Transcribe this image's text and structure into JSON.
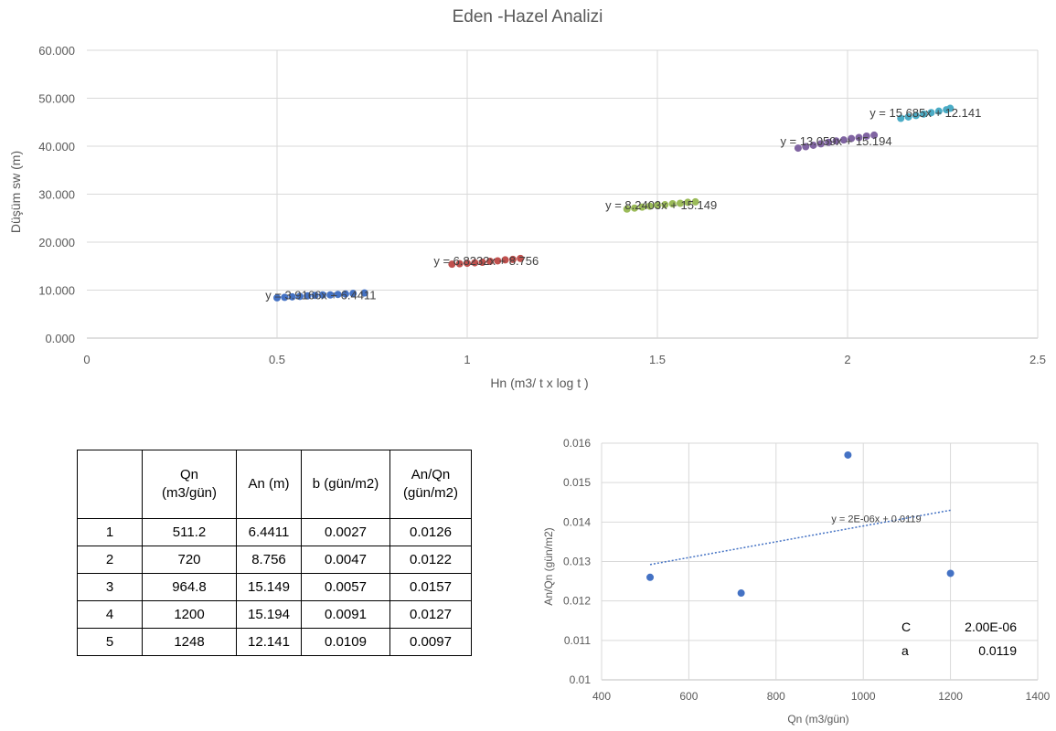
{
  "main_title": "Eden -Hazel Analizi",
  "colors": {
    "s1": "#4472c4",
    "s2": "#c0504d",
    "s3": "#9bbb59",
    "s4": "#8064a2",
    "s5": "#4bacc6",
    "grid": "#d9d9d9",
    "text": "#595959"
  },
  "chart_data": [
    {
      "type": "scatter",
      "title": "Eden -Hazel Analizi",
      "xlabel": "Hn  (m3/ t  x log t )",
      "ylabel": "Düşüm sw (m)",
      "xlim": [
        0,
        2.5
      ],
      "ylim": [
        0,
        60
      ],
      "x_ticks": [
        "0",
        "0.5",
        "1",
        "1.5",
        "2",
        "2.5"
      ],
      "y_ticks": [
        "0.000",
        "10.000",
        "20.000",
        "30.000",
        "40.000",
        "50.000",
        "60.000"
      ],
      "grid": true,
      "series": [
        {
          "color": "#4472c4",
          "trendline": "y = 3.9166x + 6.4411",
          "points": [
            [
              0.5,
              8.4
            ],
            [
              0.52,
              8.5
            ],
            [
              0.54,
              8.6
            ],
            [
              0.56,
              8.7
            ],
            [
              0.58,
              8.8
            ],
            [
              0.6,
              8.9
            ],
            [
              0.62,
              9.0
            ],
            [
              0.64,
              9.0
            ],
            [
              0.66,
              9.1
            ],
            [
              0.68,
              9.2
            ],
            [
              0.7,
              9.3
            ],
            [
              0.73,
              9.4
            ]
          ]
        },
        {
          "color": "#c0504d",
          "trendline": "y = 6.8232x + 8.756",
          "points": [
            [
              0.96,
              15.4
            ],
            [
              0.98,
              15.5
            ],
            [
              1.0,
              15.6
            ],
            [
              1.02,
              15.7
            ],
            [
              1.04,
              15.8
            ],
            [
              1.06,
              16.0
            ],
            [
              1.08,
              16.1
            ],
            [
              1.1,
              16.3
            ],
            [
              1.12,
              16.4
            ],
            [
              1.14,
              16.6
            ]
          ]
        },
        {
          "color": "#9bbb59",
          "trendline": "y = 8.2403x + 15.149",
          "points": [
            [
              1.42,
              26.9
            ],
            [
              1.44,
              27.1
            ],
            [
              1.46,
              27.3
            ],
            [
              1.48,
              27.5
            ],
            [
              1.5,
              27.7
            ],
            [
              1.52,
              27.8
            ],
            [
              1.54,
              28.0
            ],
            [
              1.56,
              28.1
            ],
            [
              1.58,
              28.3
            ],
            [
              1.6,
              28.4
            ]
          ]
        },
        {
          "color": "#8064a2",
          "trendline": "y = 13.059x + 15.194",
          "points": [
            [
              1.87,
              39.6
            ],
            [
              1.89,
              39.9
            ],
            [
              1.91,
              40.2
            ],
            [
              1.93,
              40.5
            ],
            [
              1.95,
              40.8
            ],
            [
              1.97,
              41.1
            ],
            [
              1.99,
              41.3
            ],
            [
              2.01,
              41.6
            ],
            [
              2.03,
              41.8
            ],
            [
              2.05,
              42.1
            ],
            [
              2.07,
              42.3
            ]
          ]
        },
        {
          "color": "#4bacc6",
          "trendline": "y = 15.685x + 12.141",
          "points": [
            [
              2.14,
              45.8
            ],
            [
              2.16,
              46.1
            ],
            [
              2.18,
              46.4
            ],
            [
              2.2,
              46.7
            ],
            [
              2.22,
              47.0
            ],
            [
              2.24,
              47.3
            ],
            [
              2.26,
              47.6
            ],
            [
              2.27,
              47.9
            ]
          ]
        }
      ]
    },
    {
      "type": "scatter",
      "xlabel": "Qn (m3/gün)",
      "ylabel": "An/Qn (gün/m2)",
      "xlim": [
        400,
        1400
      ],
      "ylim": [
        0.01,
        0.016
      ],
      "x_ticks": [
        "400",
        "600",
        "800",
        "1000",
        "1200",
        "1400"
      ],
      "y_ticks": [
        "0.01",
        "0.011",
        "0.012",
        "0.013",
        "0.014",
        "0.015",
        "0.016"
      ],
      "grid": true,
      "points": [
        [
          511.2,
          0.0126
        ],
        [
          720,
          0.0122
        ],
        [
          964.8,
          0.0157
        ],
        [
          1200,
          0.0127
        ]
      ],
      "trendline": "y = 2E-06x + 0.0119",
      "trendline_range": [
        511.2,
        1200
      ],
      "params": [
        {
          "label": "C",
          "value": "2.00E-06"
        },
        {
          "label": "a",
          "value": "0.0119"
        }
      ]
    }
  ],
  "table": {
    "headers": [
      "",
      "Qn\n(m3/gün)",
      "An (m)",
      "b (gün/m2)",
      "An/Qn\n(gün/m2)"
    ],
    "rows": [
      [
        "1",
        "511.2",
        "6.4411",
        "0.0027",
        "0.0126"
      ],
      [
        "2",
        "720",
        "8.756",
        "0.0047",
        "0.0122"
      ],
      [
        "3",
        "964.8",
        "15.149",
        "0.0057",
        "0.0157"
      ],
      [
        "4",
        "1200",
        "15.194",
        "0.0091",
        "0.0127"
      ],
      [
        "5",
        "1248",
        "12.141",
        "0.0109",
        "0.0097"
      ]
    ]
  }
}
